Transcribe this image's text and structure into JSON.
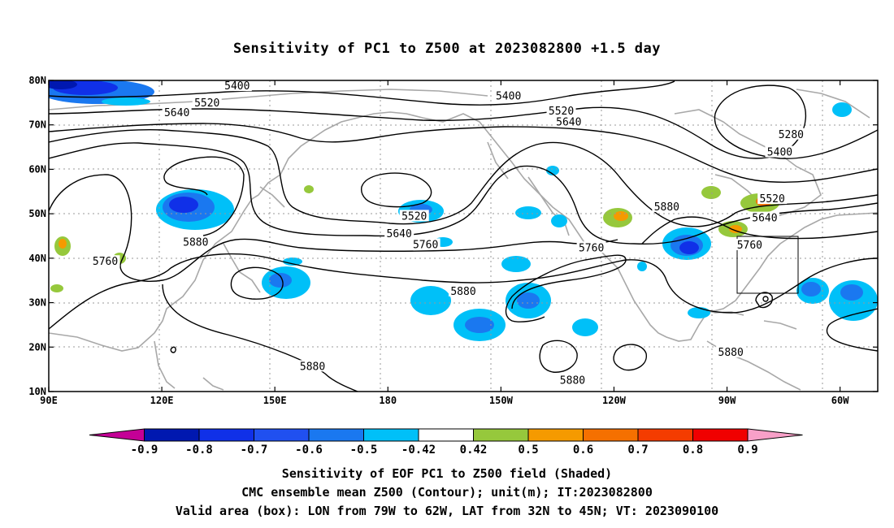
{
  "title": "Sensitivity of PC1 to Z500 at 2023082800 +1.5 day",
  "axes": {
    "lon_labels": [
      "90E",
      "120E",
      "150E",
      "180",
      "150W",
      "120W",
      "90W",
      "60W"
    ],
    "lat_labels": [
      "10N",
      "20N",
      "30N",
      "40N",
      "50N",
      "60N",
      "70N",
      "80N"
    ]
  },
  "contour_labels": [
    {
      "text": "5400",
      "lon": 140,
      "lat": 78.7
    },
    {
      "text": "5400",
      "lon": -148,
      "lat": 76.4
    },
    {
      "text": "5520",
      "lon": 132,
      "lat": 74.9
    },
    {
      "text": "5520",
      "lon": -134,
      "lat": 73.1
    },
    {
      "text": "5640",
      "lon": 124,
      "lat": 72.7
    },
    {
      "text": "5640",
      "lon": -132,
      "lat": 70.6
    },
    {
      "text": "5280",
      "lon": -73,
      "lat": 67.8
    },
    {
      "text": "5400",
      "lon": -76,
      "lat": 63.8
    },
    {
      "text": "5520",
      "lon": -78,
      "lat": 53.3
    },
    {
      "text": "5520",
      "lon": -173,
      "lat": 49.4
    },
    {
      "text": "5640",
      "lon": -80,
      "lat": 49.0
    },
    {
      "text": "5640",
      "lon": -177,
      "lat": 45.5
    },
    {
      "text": "5760",
      "lon": -170,
      "lat": 43.0
    },
    {
      "text": "5760",
      "lon": -84,
      "lat": 42.9
    },
    {
      "text": "5760",
      "lon": -126,
      "lat": 42.3
    },
    {
      "text": "5760",
      "lon": 105,
      "lat": 39.2
    },
    {
      "text": "5880",
      "lon": -106,
      "lat": 51.5
    },
    {
      "text": "5880",
      "lon": 129,
      "lat": 43.5
    },
    {
      "text": "5880",
      "lon": -160,
      "lat": 32.5
    },
    {
      "text": "5880",
      "lon": -89,
      "lat": 18.8
    },
    {
      "text": "5880",
      "lon": 160,
      "lat": 15.6
    },
    {
      "text": "5880",
      "lon": -131,
      "lat": 12.5
    }
  ],
  "colorbar": {
    "labels": [
      "-0.9",
      "-0.8",
      "-0.7",
      "-0.6",
      "-0.5",
      "-0.42",
      "0.42",
      "0.5",
      "0.6",
      "0.7",
      "0.8",
      "0.9"
    ],
    "colors": [
      "#c40096",
      "#0018b0",
      "#1030e8",
      "#2050f0",
      "#1a78f0",
      "#00c0f8",
      "#ffffff",
      "#96c83c",
      "#f59a00",
      "#f57000",
      "#f43c00",
      "#f00000",
      "#f8a0c8"
    ]
  },
  "valid_box": {
    "lon_min": -79,
    "lon_max": -62,
    "lat_min": 32,
    "lat_max": 45
  },
  "captions": {
    "line1": "Sensitivity of EOF PC1 to Z500 field (Shaded)",
    "line2": "CMC ensemble mean Z500 (Contour); unit(m); IT:2023082800",
    "line3": "Valid area (box): LON from 79W to 62W, LAT from 32N to 45N; VT: 2023090100"
  }
}
